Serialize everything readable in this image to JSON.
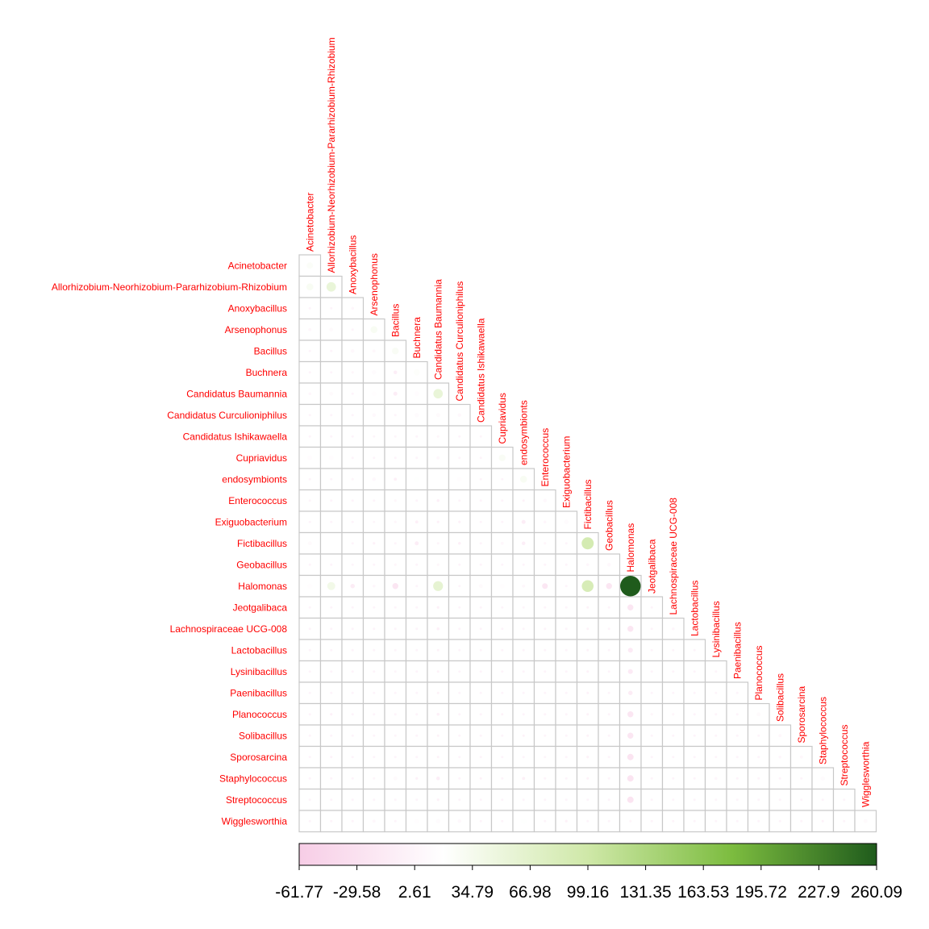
{
  "chart_data": {
    "type": "heatmap",
    "subtype": "lower-triangle correlation/covariance plot with circle glyphs",
    "title": "",
    "labels": [
      "Acinetobacter",
      "Allorhizobium-Neorhizobium-Pararhizobium-Rhizobium",
      "Anoxybacillus",
      "Arsenophonus",
      "Bacillus",
      "Buchnera",
      "Candidatus Baumannia",
      "Candidatus Curculioniphilus",
      "Candidatus Ishikawaella",
      "Cupriavidus",
      "endosymbionts",
      "Enterococcus",
      "Exiguobacterium",
      "Fictibacillus",
      "Geobacillus",
      "Halomonas",
      "Jeotgalibaca",
      "Lachnospiraceae UCG-008",
      "Lactobacillus",
      "Lysinibacillus",
      "Paenibacillus",
      "Planococcus",
      "Solibacillus",
      "Sporosarcina",
      "Staphylococcus",
      "Streptococcus",
      "Wigglesworthia"
    ],
    "colorbar": {
      "ticks": [
        "-61.77",
        "-29.58",
        "2.61",
        "34.79",
        "66.98",
        "99.16",
        "131.35",
        "163.53",
        "195.72",
        "227.9",
        "260.09"
      ],
      "range": [
        -61.77,
        260.09
      ],
      "colors": [
        "#f7cde6",
        "#ffffff",
        "#cfe8a8",
        "#7cbc3f",
        "#1f5b1c"
      ]
    },
    "cells": [
      [
        0,
        0,
        25
      ],
      [
        1,
        0,
        30
      ],
      [
        1,
        1,
        55
      ],
      [
        2,
        2,
        5
      ],
      [
        3,
        0,
        6
      ],
      [
        3,
        1,
        10
      ],
      [
        3,
        3,
        30
      ],
      [
        4,
        2,
        8
      ],
      [
        4,
        3,
        6
      ],
      [
        4,
        4,
        28
      ],
      [
        5,
        2,
        4
      ],
      [
        5,
        3,
        12
      ],
      [
        5,
        4,
        -8
      ],
      [
        5,
        5,
        22
      ],
      [
        6,
        0,
        5
      ],
      [
        6,
        1,
        10
      ],
      [
        6,
        3,
        15
      ],
      [
        6,
        4,
        -10
      ],
      [
        6,
        5,
        14
      ],
      [
        6,
        6,
        55
      ],
      [
        7,
        3,
        8
      ],
      [
        7,
        5,
        12
      ],
      [
        7,
        6,
        10
      ],
      [
        7,
        7,
        8
      ],
      [
        8,
        3,
        3
      ],
      [
        8,
        4,
        2
      ],
      [
        8,
        6,
        4
      ],
      [
        8,
        8,
        3
      ],
      [
        9,
        0,
        14
      ],
      [
        9,
        1,
        14
      ],
      [
        9,
        6,
        6
      ],
      [
        9,
        9,
        28
      ],
      [
        10,
        2,
        4
      ],
      [
        10,
        3,
        8
      ],
      [
        10,
        4,
        -6
      ],
      [
        10,
        5,
        20
      ],
      [
        10,
        6,
        18
      ],
      [
        10,
        7,
        15
      ],
      [
        10,
        10,
        30
      ],
      [
        11,
        0,
        3
      ],
      [
        11,
        4,
        4
      ],
      [
        11,
        6,
        -5
      ],
      [
        11,
        10,
        -3
      ],
      [
        11,
        11,
        8
      ],
      [
        12,
        3,
        3
      ],
      [
        12,
        4,
        4
      ],
      [
        12,
        5,
        -6
      ],
      [
        12,
        6,
        -4
      ],
      [
        12,
        7,
        -4
      ],
      [
        12,
        10,
        -10
      ],
      [
        12,
        11,
        5
      ],
      [
        12,
        12,
        12
      ],
      [
        13,
        0,
        10
      ],
      [
        13,
        1,
        18
      ],
      [
        13,
        3,
        -4
      ],
      [
        13,
        5,
        -10
      ],
      [
        13,
        7,
        -5
      ],
      [
        13,
        9,
        6
      ],
      [
        13,
        10,
        -8
      ],
      [
        13,
        11,
        4
      ],
      [
        13,
        13,
        90
      ],
      [
        14,
        2,
        3
      ],
      [
        14,
        4,
        4
      ],
      [
        14,
        6,
        4
      ],
      [
        14,
        13,
        5
      ],
      [
        14,
        14,
        8
      ],
      [
        15,
        0,
        16
      ],
      [
        15,
        1,
        40
      ],
      [
        15,
        2,
        -12
      ],
      [
        15,
        3,
        5
      ],
      [
        15,
        4,
        -22
      ],
      [
        15,
        6,
        60
      ],
      [
        15,
        8,
        10
      ],
      [
        15,
        9,
        15
      ],
      [
        15,
        10,
        6
      ],
      [
        15,
        11,
        -20
      ],
      [
        15,
        13,
        85
      ],
      [
        15,
        14,
        -22
      ],
      [
        15,
        15,
        260.09
      ],
      [
        16,
        6,
        -4
      ],
      [
        16,
        10,
        3
      ],
      [
        16,
        13,
        -3
      ],
      [
        16,
        15,
        -22
      ],
      [
        17,
        6,
        -5
      ],
      [
        17,
        10,
        2
      ],
      [
        17,
        13,
        -3
      ],
      [
        17,
        15,
        -22
      ],
      [
        17,
        17,
        5
      ],
      [
        18,
        6,
        -3
      ],
      [
        18,
        13,
        -3
      ],
      [
        18,
        15,
        -15
      ],
      [
        19,
        4,
        3
      ],
      [
        19,
        6,
        -3
      ],
      [
        19,
        13,
        -3
      ],
      [
        19,
        15,
        -15
      ],
      [
        20,
        6,
        -3
      ],
      [
        20,
        13,
        -2
      ],
      [
        20,
        15,
        -12
      ],
      [
        21,
        1,
        -4
      ],
      [
        21,
        6,
        -5
      ],
      [
        21,
        9,
        -3
      ],
      [
        21,
        13,
        -3
      ],
      [
        21,
        15,
        -22
      ],
      [
        21,
        16,
        4
      ],
      [
        21,
        17,
        4
      ],
      [
        21,
        21,
        10
      ],
      [
        22,
        4,
        3
      ],
      [
        22,
        6,
        -3
      ],
      [
        22,
        10,
        -3
      ],
      [
        22,
        11,
        3
      ],
      [
        22,
        13,
        -3
      ],
      [
        22,
        15,
        -22
      ],
      [
        22,
        22,
        6
      ],
      [
        23,
        1,
        -2
      ],
      [
        23,
        6,
        -3
      ],
      [
        23,
        11,
        3
      ],
      [
        23,
        13,
        -4
      ],
      [
        23,
        15,
        -25
      ],
      [
        23,
        22,
        5
      ],
      [
        23,
        23,
        6
      ],
      [
        24,
        3,
        3
      ],
      [
        24,
        4,
        10
      ],
      [
        24,
        5,
        -4
      ],
      [
        24,
        6,
        -8
      ],
      [
        24,
        8,
        -3
      ],
      [
        24,
        10,
        -6
      ],
      [
        24,
        13,
        -3
      ],
      [
        24,
        15,
        -25
      ],
      [
        24,
        19,
        5
      ],
      [
        24,
        24,
        12
      ],
      [
        25,
        6,
        -4
      ],
      [
        25,
        15,
        -25
      ],
      [
        26,
        3,
        6
      ],
      [
        26,
        5,
        15
      ],
      [
        26,
        6,
        12
      ],
      [
        26,
        7,
        8
      ],
      [
        26,
        10,
        20
      ],
      [
        26,
        12,
        -4
      ],
      [
        26,
        15,
        4
      ],
      [
        26,
        24,
        -2
      ],
      [
        26,
        26,
        10
      ]
    ]
  }
}
